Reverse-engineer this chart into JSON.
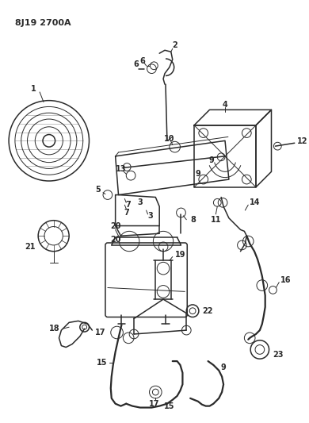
{
  "title_text": "8J19 2700A",
  "bg_color": "#ffffff",
  "line_color": "#2a2a2a",
  "fig_width": 3.9,
  "fig_height": 5.33,
  "dpi": 100
}
